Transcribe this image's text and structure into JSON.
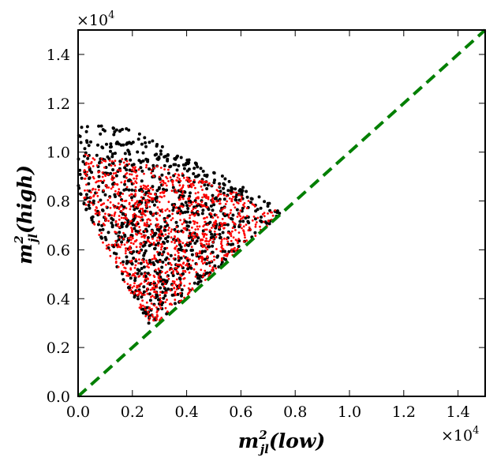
{
  "chart_data": {
    "type": "scatter",
    "title": "",
    "xlabel": "m²_jl(low)",
    "ylabel": "m²_jl(high)",
    "xlabel_parts": {
      "base": "m",
      "sup": "2",
      "sub": "jl",
      "paren": "(low)"
    },
    "ylabel_parts": {
      "base": "m",
      "sup": "2",
      "sub": "jl",
      "paren": "(high)"
    },
    "xlim": [
      0,
      1.5
    ],
    "ylim": [
      0,
      1.5
    ],
    "multiplier": "×10",
    "multiplier_exp": "4",
    "xticks": [
      "0.0",
      "0.2",
      "0.4",
      "0.6",
      "0.8",
      "1.0",
      "1.2",
      "1.4"
    ],
    "yticks": [
      "0.0",
      "0.2",
      "0.4",
      "0.6",
      "0.8",
      "1.0",
      "1.2",
      "1.4"
    ],
    "reference_line": {
      "name": "diagonal y = x",
      "from": [
        0,
        0
      ],
      "to": [
        1.5,
        1.5
      ],
      "color": "#007f00",
      "style": "dashed"
    },
    "series": [
      {
        "name": "black",
        "color": "#000000",
        "count": 900,
        "region": {
          "x_from": 0.0,
          "x_to": 0.75,
          "y_max_at_x0": 1.1,
          "y_max_peak": 1.13,
          "y_max_at_x_end": 0.76,
          "y_min_start": 0.28,
          "y_min_x": 0.27
        }
      },
      {
        "name": "red",
        "color": "#ff0000",
        "count": 1100,
        "region": {
          "x_from": 0.02,
          "x_to": 0.74,
          "y_max_at_x0": 0.99,
          "y_max_at_x_end": 0.76,
          "y_min_start": 0.28,
          "y_min_x": 0.27
        }
      }
    ]
  }
}
